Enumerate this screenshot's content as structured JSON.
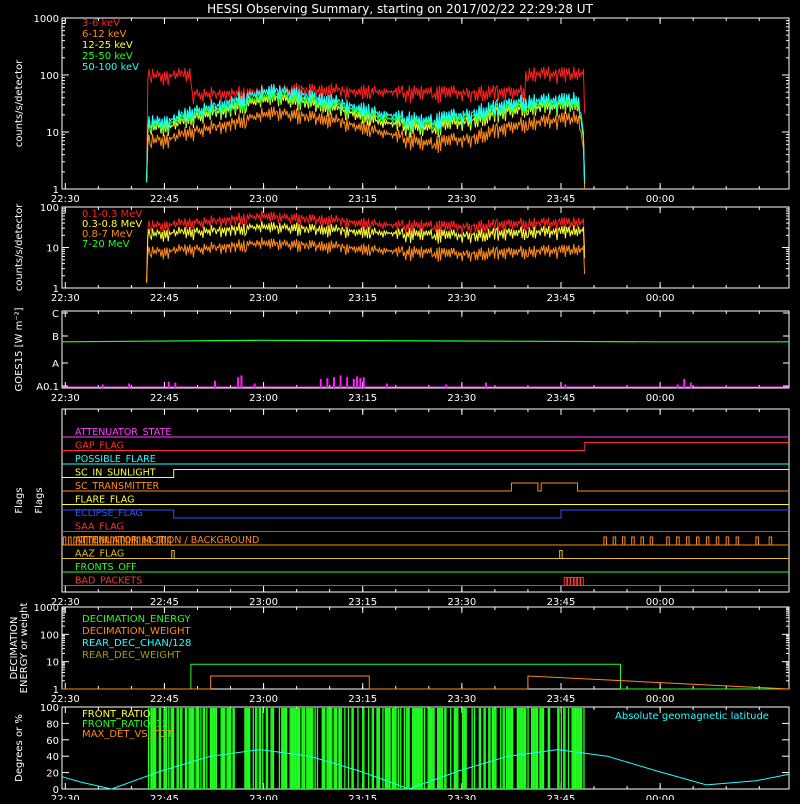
{
  "chart_data": [
    {
      "type": "line",
      "panel": "count-rates",
      "title": "HESSI Observing Summary, starting on 2017/02/22 22:29:28 UT",
      "ylabel": "counts/s/detector",
      "xlabel": "",
      "log_y": true,
      "ylim": [
        1,
        1000
      ],
      "y_ticks": [
        1,
        10,
        100,
        1000
      ],
      "y_tick_labels": [
        "1",
        "10",
        "100",
        "1000"
      ],
      "xlim_minutes": [
        0,
        110
      ],
      "x_ticks_minutes": [
        0.5,
        15.5,
        30.5,
        45.5,
        60.5,
        75.5,
        90.5
      ],
      "x_tick_labels": [
        "22:30",
        "22:45",
        "23:00",
        "23:15",
        "23:30",
        "23:45",
        "00:00"
      ],
      "legend_placement": "top-left",
      "series": [
        {
          "name": "3-6 keV",
          "color": "#ff2020",
          "x": [
            12.8,
            13.0,
            19.5,
            19.6,
            28,
            35,
            45,
            55,
            65,
            70,
            70.1,
            79,
            79.1
          ],
          "y": [
            1,
            100,
            100,
            45,
            50,
            56,
            52,
            48,
            50,
            50,
            105,
            105,
            1
          ]
        },
        {
          "name": "6-12 keV",
          "color": "#ff8a1a",
          "x": [
            12.8,
            13.0,
            17,
            25,
            32,
            40,
            48,
            55,
            62,
            70,
            78,
            79.1
          ],
          "y": [
            1,
            7,
            8,
            14,
            22,
            17,
            10,
            6,
            8,
            14,
            18,
            1
          ]
        },
        {
          "name": "12-25 keV",
          "color": "#ffff30",
          "x": [
            12.8,
            13.0,
            17,
            25,
            32,
            40,
            48,
            55,
            62,
            70,
            78,
            79.1
          ],
          "y": [
            1,
            12,
            13,
            25,
            40,
            28,
            15,
            11,
            16,
            26,
            30,
            1
          ]
        },
        {
          "name": "25-50 keV",
          "color": "#20ff20",
          "x": [
            12.8,
            13.0,
            17,
            25,
            32,
            40,
            48,
            55,
            62,
            70,
            78,
            79.1
          ],
          "y": [
            1,
            13,
            15,
            28,
            45,
            32,
            18,
            13,
            19,
            30,
            33,
            1
          ]
        },
        {
          "name": "50-100 keV",
          "color": "#20ffff",
          "x": [
            12.8,
            13.0,
            17,
            25,
            32,
            40,
            48,
            55,
            62,
            70,
            78,
            79.1
          ],
          "y": [
            1,
            15,
            17,
            33,
            55,
            37,
            21,
            15,
            22,
            35,
            38,
            1
          ]
        }
      ]
    },
    {
      "type": "line",
      "panel": "gamma-rates",
      "title": "",
      "ylabel": "counts/s/detector",
      "xlabel": "",
      "log_y": true,
      "ylim": [
        1,
        100
      ],
      "y_ticks": [
        1,
        10,
        100
      ],
      "y_tick_labels": [
        "1",
        "10",
        "100"
      ],
      "xlim_minutes": [
        0,
        110
      ],
      "x_ticks_minutes": [
        0.5,
        15.5,
        30.5,
        45.5,
        60.5,
        75.5,
        90.5
      ],
      "x_tick_labels": [
        "22:30",
        "22:45",
        "23:00",
        "23:15",
        "23:30",
        "23:45",
        "00:00"
      ],
      "legend_placement": "top-left",
      "series": [
        {
          "name": "0.1-0.3 MeV",
          "color": "#ff2020",
          "x": [
            12.8,
            13.0,
            20,
            30,
            40,
            50,
            60,
            70,
            79,
            79.1
          ],
          "y": [
            1,
            35,
            40,
            60,
            48,
            35,
            33,
            40,
            42,
            1
          ]
        },
        {
          "name": "0.3-0.8 MeV",
          "color": "#ffff30",
          "x": [
            12.8,
            13.0,
            20,
            30,
            40,
            50,
            60,
            70,
            79,
            79.1
          ],
          "y": [
            1,
            22,
            24,
            33,
            28,
            22,
            20,
            24,
            26,
            1
          ]
        },
        {
          "name": "0.8-7 MeV",
          "color": "#ff8a1a",
          "x": [
            12.8,
            13.0,
            20,
            30,
            40,
            50,
            60,
            70,
            79,
            79.1
          ],
          "y": [
            1,
            8,
            9,
            13,
            11,
            8,
            7,
            8,
            9,
            1
          ]
        },
        {
          "name": "7-20 MeV",
          "color": "#20ff20",
          "x": [],
          "y": []
        }
      ]
    },
    {
      "type": "line",
      "panel": "goes",
      "title": "",
      "ylabel": "GOES15 [W m⁻²]",
      "xlabel": "",
      "y_levels": [
        "C",
        "B",
        "A",
        "A0.1"
      ],
      "xlim_minutes": [
        0,
        110
      ],
      "x_ticks_minutes": [
        0.5,
        15.5,
        30.5,
        45.5,
        60.5,
        75.5,
        90.5
      ],
      "x_tick_labels": [
        "22:30",
        "22:45",
        "23:00",
        "23:15",
        "23:30",
        "23:45",
        "00:00"
      ],
      "series": [
        {
          "name": "",
          "color": "#20ff20",
          "x": [
            0,
            30,
            60,
            90,
            110
          ],
          "y": [
            0.6,
            0.62,
            0.61,
            0.6,
            0.6
          ],
          "y_units": "fraction of panel, from A0.1 (0) to C (1)"
        }
      ],
      "bars": {
        "color": "#ff20ff",
        "x_minutes": [
          6,
          10,
          16,
          17,
          23,
          26.5,
          27,
          29,
          39,
          40,
          41,
          42,
          43,
          44,
          44.5,
          45,
          45.5,
          49,
          58,
          64,
          76,
          93,
          94,
          95
        ],
        "heights_fraction": [
          0.2,
          0.25,
          0.35,
          0.3,
          0.4,
          0.6,
          0.7,
          0.25,
          0.5,
          0.55,
          0.6,
          0.7,
          0.6,
          0.5,
          0.65,
          0.55,
          0.6,
          0.25,
          0.2,
          0.3,
          0.2,
          0.2,
          0.5,
          0.3
        ]
      }
    },
    {
      "type": "line",
      "panel": "flags",
      "title": "",
      "ylabel": "Flags",
      "xlabel": "",
      "xlim_minutes": [
        0,
        110
      ],
      "x_ticks_minutes": [
        0.5,
        15.5,
        30.5,
        45.5,
        60.5,
        75.5,
        90.5
      ],
      "x_tick_labels": [
        "22:30",
        "22:45",
        "23:00",
        "23:15",
        "23:30",
        "23:45",
        "00:00"
      ],
      "flags": [
        {
          "name": "ATTENUATOR_STATE",
          "color": "#ff40ff",
          "steps": [
            [
              0,
              0
            ]
          ]
        },
        {
          "name": "GAP_FLAG",
          "color": "#ff3030",
          "steps": [
            [
              0,
              0
            ],
            [
              79.1,
              1
            ]
          ]
        },
        {
          "name": "POSSIBLE_FLARE",
          "color": "#20ffff",
          "steps": [
            [
              0,
              0
            ]
          ]
        },
        {
          "name": "SC_IN_SUNLIGHT",
          "color": "#ffff30",
          "steps": [
            [
              0,
              0
            ],
            [
              16.9,
              1
            ]
          ]
        },
        {
          "name": "SC_TRANSMITTER",
          "color": "#ff8a1a",
          "steps": [
            [
              0,
              0
            ],
            [
              68,
              1
            ],
            [
              72,
              0
            ],
            [
              72.5,
              1
            ],
            [
              78,
              0
            ]
          ]
        },
        {
          "name": "FLARE_FLAG",
          "color": "#ffff30",
          "steps": [
            [
              0,
              0
            ]
          ]
        },
        {
          "name": "ECLIPSE_FLAG",
          "color": "#3050ff",
          "steps": [
            [
              0,
              1
            ],
            [
              16.9,
              0
            ],
            [
              75.5,
              1
            ]
          ]
        },
        {
          "name": "SAA_FLAG",
          "color": "#ff3030",
          "steps": [
            [
              0,
              0
            ]
          ]
        },
        {
          "name": "ATTENUATOR_MOTION / BACKGROUND",
          "color": "#ff8a1a",
          "steps": [
            [
              0,
              0
            ]
          ],
          "pulses_minutes": [
            0.2,
            1.0,
            1.8,
            2.6,
            3.4,
            4.2,
            5.0,
            5.8,
            6.6,
            7.4,
            8.2,
            9.0,
            9.8,
            10.6,
            11.4,
            12.2,
            13.0,
            14.4,
            15.2,
            16.0,
            82.0,
            83.4,
            84.8,
            86.2,
            87.6,
            89.0,
            91.5,
            93.0,
            94.5,
            96.0,
            97.5,
            99.0,
            100.5,
            102.0,
            105.0,
            107.0
          ]
        },
        {
          "name": "AAZ_FLAG",
          "color": "#e0c020",
          "steps": [
            [
              0,
              0
            ]
          ],
          "pulses_minutes": [
            16.6,
            75.3
          ]
        },
        {
          "name": "FRONTS_OFF",
          "color": "#20ff20",
          "steps": [
            [
              0,
              0
            ]
          ]
        },
        {
          "name": "BAD_PACKETS",
          "color": "#ff3030",
          "steps": [
            [
              0,
              0
            ]
          ],
          "pulses_minutes": [
            76.0,
            76.5,
            77.0,
            77.5,
            78.0,
            78.5
          ]
        }
      ]
    },
    {
      "type": "line",
      "panel": "decimation",
      "title": "",
      "ylabel": "DECIMATION ENERGY or weight",
      "xlabel": "",
      "log_y": true,
      "ylim": [
        1,
        1000
      ],
      "y_ticks": [
        1,
        10,
        100,
        1000
      ],
      "y_tick_labels": [
        "1",
        "10",
        "100",
        "1000"
      ],
      "xlim_minutes": [
        0,
        110
      ],
      "x_ticks_minutes": [
        0.5,
        15.5,
        30.5,
        45.5,
        60.5,
        75.5,
        90.5
      ],
      "x_tick_labels": [
        "22:30",
        "22:45",
        "23:00",
        "23:15",
        "23:30",
        "23:45",
        "00:00"
      ],
      "legend_placement": "top-left",
      "series": [
        {
          "name": "DECIMATION_ENERGY",
          "color": "#20ff20",
          "x": [
            0,
            19.5,
            19.5,
            84.5,
            84.5,
            110
          ],
          "y": [
            1,
            1,
            8,
            8,
            1,
            1
          ]
        },
        {
          "name": "DECIMATION_WEIGHT",
          "color": "#ff8a1a",
          "x": [
            0,
            22.5,
            22.5,
            46.5,
            46.5,
            70.5,
            70.5,
            110
          ],
          "y": [
            1,
            1,
            3,
            3,
            1,
            1,
            3,
            1
          ]
        },
        {
          "name": "REAR_DEC_CHAN/128",
          "color": "#20ffff",
          "x": [],
          "y": []
        },
        {
          "name": "REAR_DEC_WEIGHT",
          "color": "#a0a000",
          "x": [],
          "y": []
        }
      ]
    },
    {
      "type": "line",
      "panel": "ratios",
      "title": "",
      "ylabel": "Degrees or %",
      "xlabel": "",
      "ylim": [
        0,
        100
      ],
      "y_ticks": [
        0,
        20,
        40,
        60,
        80,
        100
      ],
      "y_tick_labels": [
        "0",
        "20",
        "40",
        "60",
        "80",
        "100"
      ],
      "xlim_minutes": [
        0,
        110
      ],
      "x_ticks_minutes": [
        0.5,
        15.5,
        30.5,
        45.5,
        60.5,
        75.5,
        90.5
      ],
      "x_tick_labels": [
        "22:30",
        "22:45",
        "23:00",
        "23:15",
        "23:30",
        "23:45",
        "00:00"
      ],
      "legend_placement": "top-left",
      "annotation": "Absolute geomagnetic latitude",
      "series": [
        {
          "name": "FRONT_RATIO",
          "color": "#ffff30",
          "x": [],
          "y": []
        },
        {
          "name": "FRONT_RATIO_12",
          "color": "#20ff20",
          "x": [],
          "y": []
        },
        {
          "name": "MAX_DET_VS_TOT",
          "color": "#ff8a1a",
          "x": [],
          "y": []
        },
        {
          "name": "Absolute geomagnetic latitude",
          "color": "#20ffff",
          "x": [
            0,
            3,
            7.5,
            15,
            22.5,
            30,
            37.5,
            45,
            52.5,
            60,
            67.5,
            75,
            82.5,
            90,
            97.5,
            105,
            110
          ],
          "y": [
            15,
            8,
            0,
            22,
            40,
            48,
            40,
            22,
            0,
            22,
            40,
            48,
            40,
            22,
            5,
            10,
            18
          ]
        }
      ],
      "green_fill": {
        "color": "#20ff20",
        "start": 13.0,
        "end": 79.0,
        "density_note": "dense vertical green bars between these times"
      }
    }
  ]
}
